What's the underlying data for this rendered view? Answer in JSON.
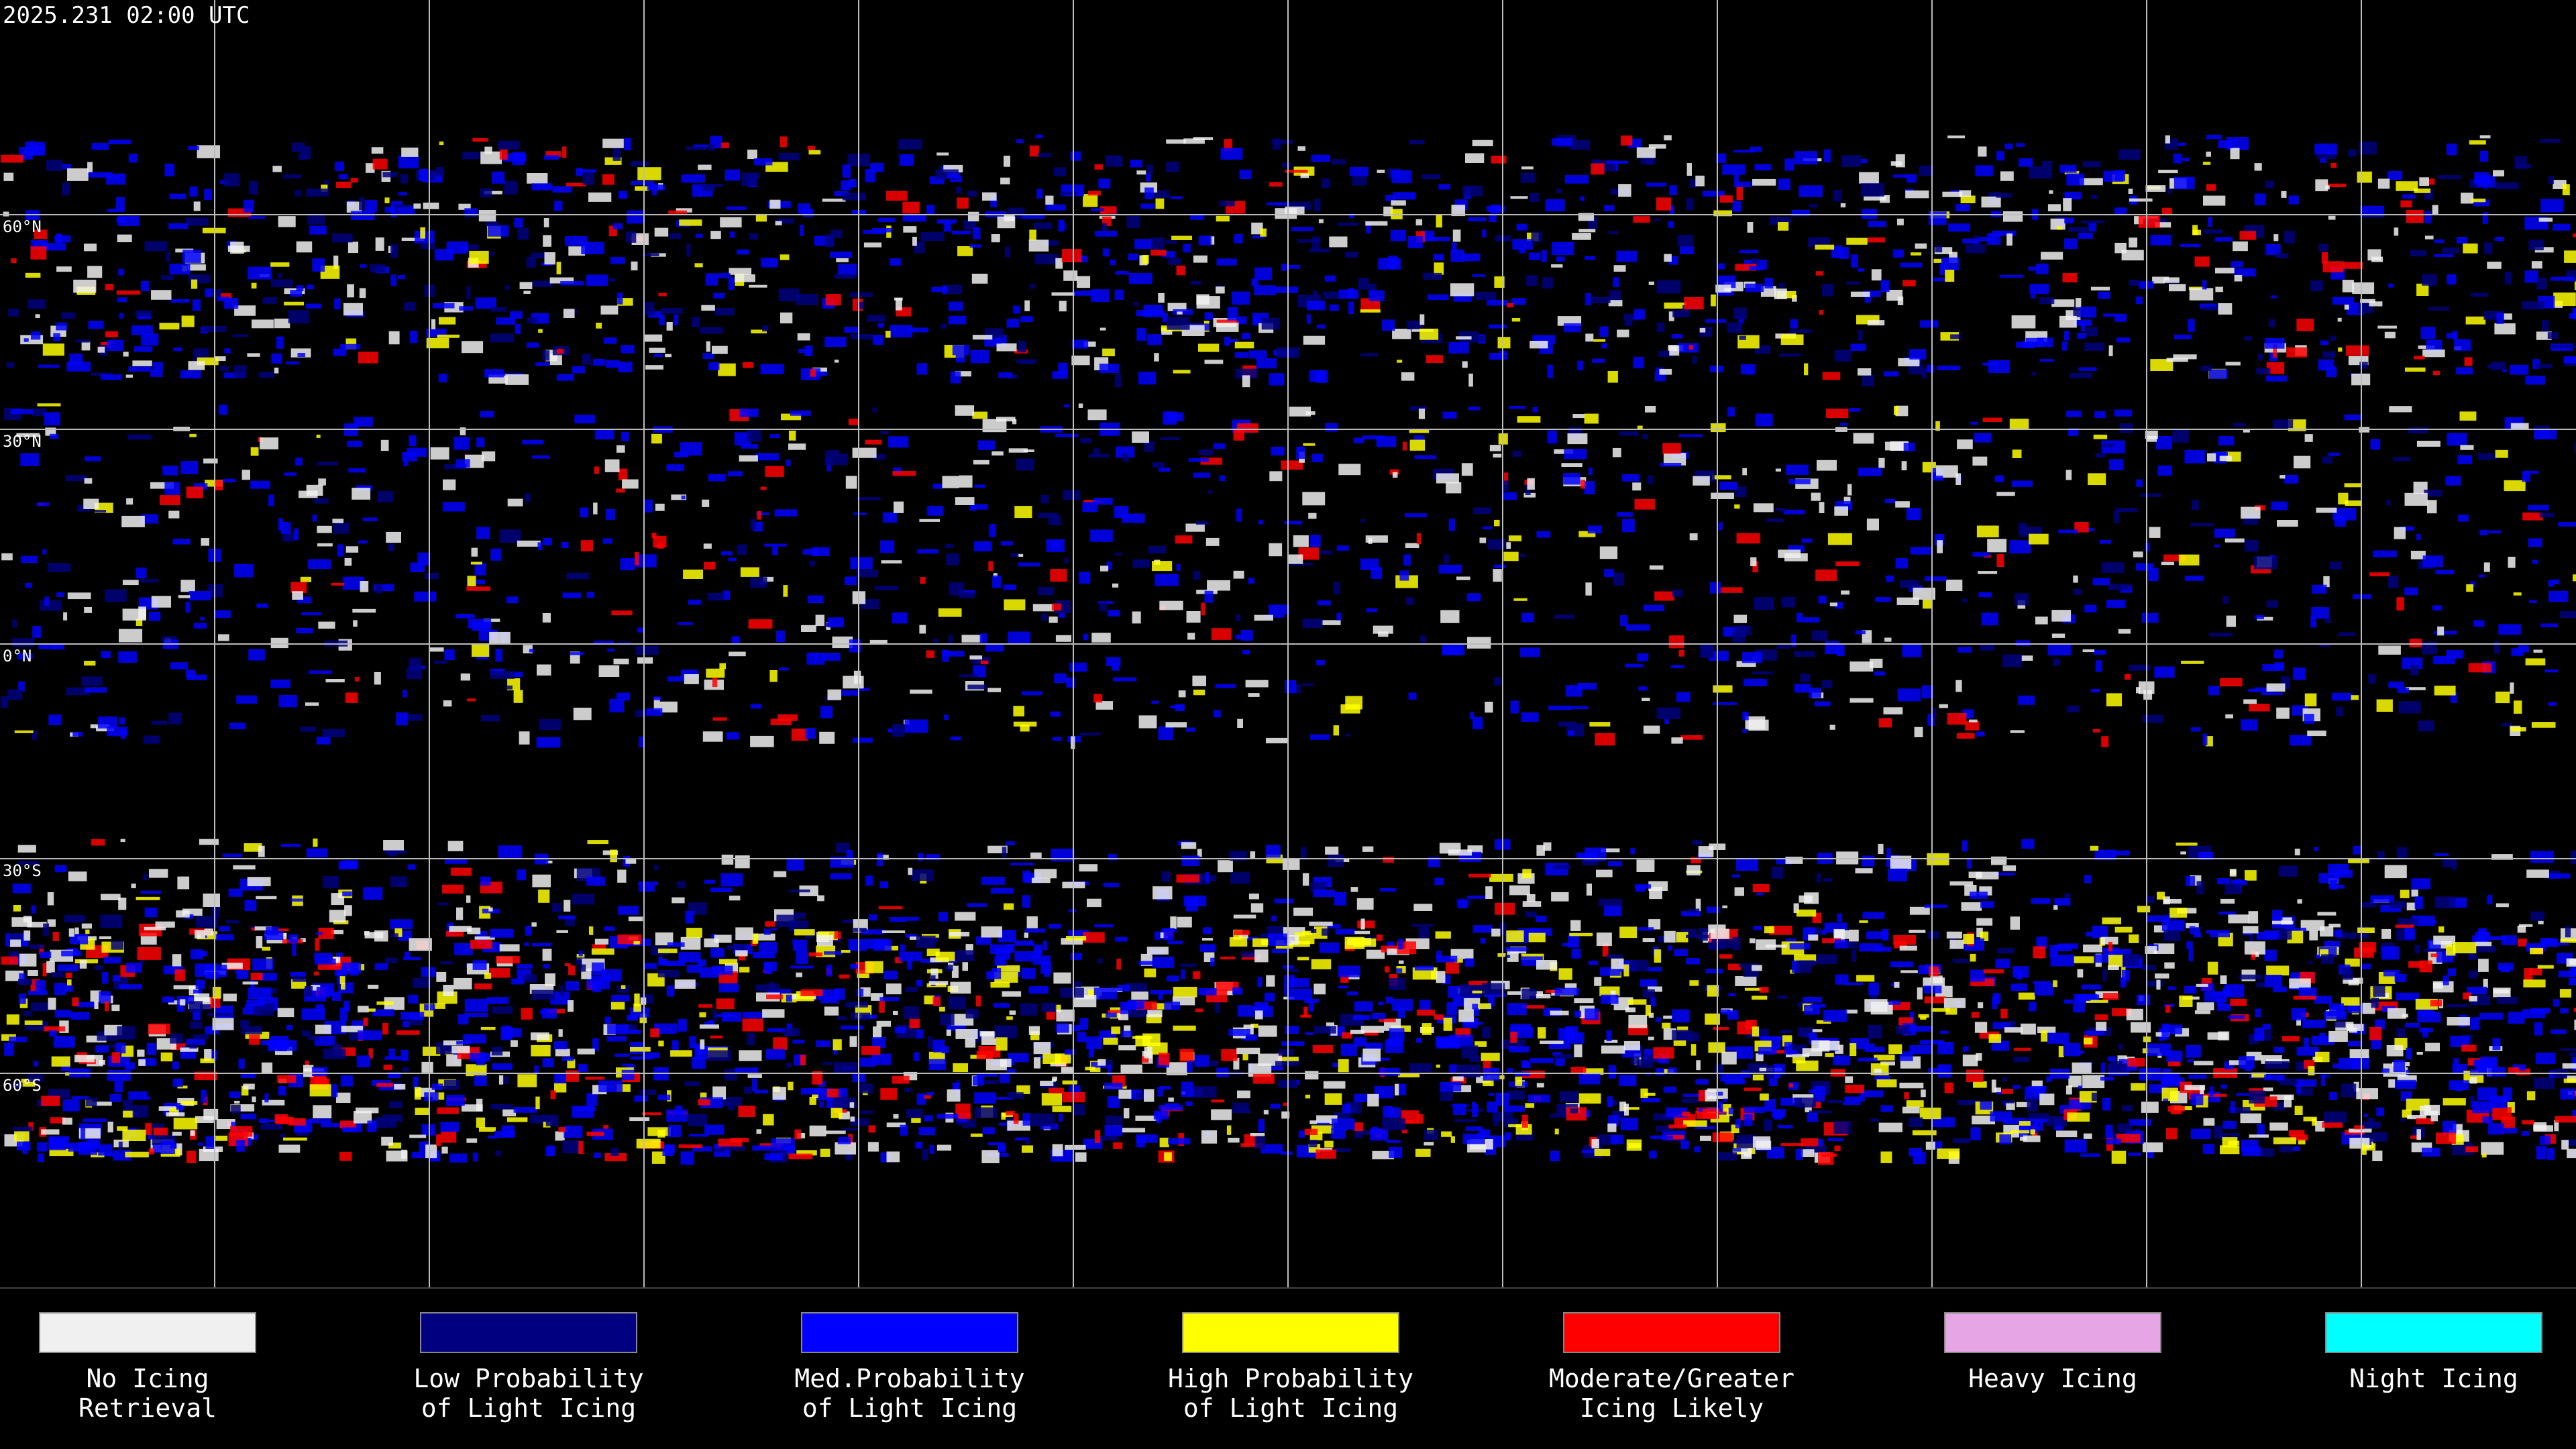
{
  "header": {
    "timestamp": "2025.231 02:00 UTC"
  },
  "map": {
    "latitude_labels": [
      "60°N",
      "30°N",
      "0°N",
      "30°S",
      "60°S"
    ]
  },
  "legend": {
    "items": [
      {
        "color": "#f0f0f0",
        "lines": [
          "No Icing",
          "Retrieval"
        ]
      },
      {
        "color": "#000080",
        "lines": [
          "Low Probability",
          "of Light Icing"
        ]
      },
      {
        "color": "#0000ff",
        "lines": [
          "Med.Probability",
          "of Light Icing"
        ]
      },
      {
        "color": "#ffff00",
        "lines": [
          "High Probability",
          "of Light Icing"
        ]
      },
      {
        "color": "#ff0000",
        "lines": [
          "Moderate/Greater",
          "Icing Likely"
        ]
      },
      {
        "color": "#e6a6e6",
        "lines": [
          "Heavy Icing"
        ]
      },
      {
        "color": "#00ffff",
        "lines": [
          "Night Icing"
        ]
      }
    ]
  }
}
